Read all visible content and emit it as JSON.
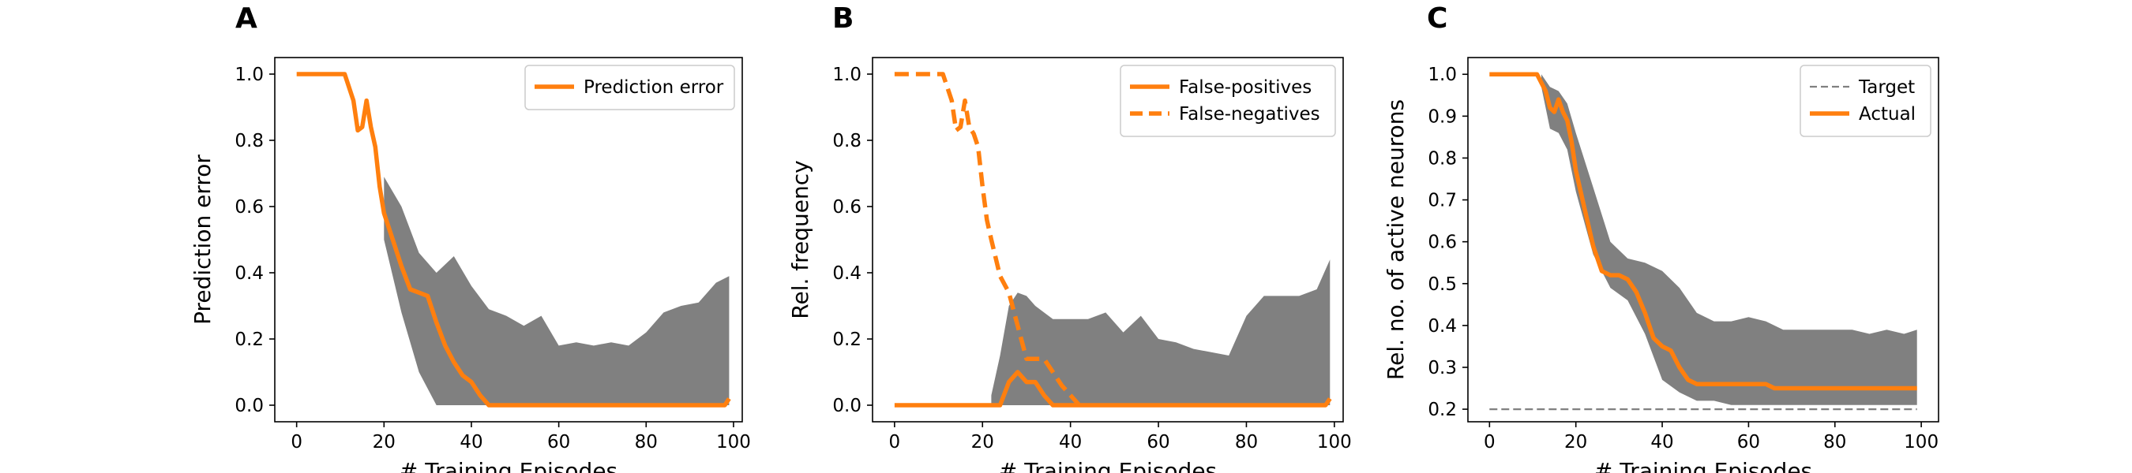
{
  "colors": {
    "line": "#ff7f0e",
    "band": "#808080",
    "target": "#808080",
    "axes": "#000000"
  },
  "chart_data": [
    {
      "type": "line",
      "panel_label": "A",
      "xlabel": "# Training Episodes",
      "ylabel": "Prediction error",
      "xlim": [
        -5,
        102
      ],
      "ylim": [
        -0.05,
        1.05
      ],
      "xticks": [
        0,
        20,
        40,
        60,
        80,
        100
      ],
      "yticks": [
        0.0,
        0.2,
        0.4,
        0.6,
        0.8,
        1.0
      ],
      "ytick_format": 1,
      "legend_position": "top-right",
      "band": {
        "x": [
          20,
          24,
          28,
          32,
          36,
          40,
          44,
          48,
          52,
          56,
          60,
          64,
          68,
          72,
          76,
          80,
          84,
          88,
          92,
          96,
          99
        ],
        "lower": [
          0.5,
          0.28,
          0.1,
          0.0,
          0.0,
          0.0,
          0.0,
          0.0,
          0.0,
          0.0,
          0.0,
          0.0,
          0.0,
          0.0,
          0.0,
          0.0,
          0.0,
          0.0,
          0.0,
          0.0,
          0.0
        ],
        "upper": [
          0.69,
          0.6,
          0.46,
          0.4,
          0.45,
          0.36,
          0.29,
          0.27,
          0.24,
          0.27,
          0.18,
          0.19,
          0.18,
          0.19,
          0.18,
          0.22,
          0.28,
          0.3,
          0.31,
          0.37,
          0.39
        ]
      },
      "series": [
        {
          "name": "Prediction error",
          "style": "solid",
          "x": [
            0,
            11,
            13,
            14,
            15,
            16,
            17,
            18,
            19,
            20,
            22,
            24,
            26,
            28,
            30,
            32,
            34,
            36,
            38,
            40,
            42,
            44,
            50,
            60,
            70,
            80,
            90,
            98,
            99
          ],
          "y": [
            1.0,
            1.0,
            0.92,
            0.83,
            0.84,
            0.92,
            0.84,
            0.78,
            0.66,
            0.58,
            0.5,
            0.42,
            0.35,
            0.34,
            0.33,
            0.25,
            0.18,
            0.13,
            0.09,
            0.07,
            0.03,
            0.0,
            0.0,
            0.0,
            0.0,
            0.0,
            0.0,
            0.0,
            0.02
          ]
        }
      ]
    },
    {
      "type": "line",
      "panel_label": "B",
      "xlabel": "# Training Episodes",
      "ylabel": "Rel. frequency",
      "xlim": [
        -5,
        102
      ],
      "ylim": [
        -0.05,
        1.05
      ],
      "xticks": [
        0,
        20,
        40,
        60,
        80,
        100
      ],
      "yticks": [
        0.0,
        0.2,
        0.4,
        0.6,
        0.8,
        1.0
      ],
      "ytick_format": 1,
      "legend_position": "top-right",
      "band": {
        "x": [
          22,
          24,
          26,
          28,
          30,
          32,
          34,
          36,
          40,
          44,
          48,
          52,
          56,
          60,
          64,
          68,
          72,
          76,
          80,
          84,
          88,
          92,
          96,
          99
        ],
        "lower": [
          0.0,
          0.0,
          0.0,
          0.0,
          0.0,
          0.0,
          0.0,
          0.0,
          0.0,
          0.0,
          0.0,
          0.0,
          0.0,
          0.0,
          0.0,
          0.0,
          0.0,
          0.0,
          0.0,
          0.0,
          0.0,
          0.0,
          0.0,
          0.0
        ],
        "upper": [
          0.03,
          0.15,
          0.3,
          0.34,
          0.33,
          0.3,
          0.28,
          0.26,
          0.26,
          0.26,
          0.28,
          0.22,
          0.27,
          0.2,
          0.19,
          0.17,
          0.16,
          0.15,
          0.27,
          0.33,
          0.33,
          0.33,
          0.35,
          0.44
        ]
      },
      "series": [
        {
          "name": "False-positives",
          "style": "solid",
          "x": [
            0,
            24,
            26,
            28,
            30,
            32,
            34,
            36,
            98,
            99
          ],
          "y": [
            0.0,
            0.0,
            0.07,
            0.1,
            0.07,
            0.07,
            0.03,
            0.0,
            0.0,
            0.02
          ]
        },
        {
          "name": "False-negatives",
          "style": "dashed",
          "x": [
            0,
            11,
            13,
            14,
            15,
            16,
            17,
            18,
            19,
            20,
            21,
            22,
            24,
            26,
            28,
            30,
            32,
            34,
            36,
            38,
            40,
            42
          ],
          "y": [
            1.0,
            1.0,
            0.92,
            0.83,
            0.84,
            0.92,
            0.84,
            0.82,
            0.78,
            0.66,
            0.56,
            0.5,
            0.39,
            0.34,
            0.24,
            0.14,
            0.14,
            0.14,
            0.1,
            0.06,
            0.03,
            0.0
          ]
        }
      ]
    },
    {
      "type": "line",
      "panel_label": "C",
      "xlabel": "# Training Episodes",
      "ylabel": "Rel. no. of active neurons",
      "xlim": [
        -5,
        104
      ],
      "ylim": [
        0.17,
        1.04
      ],
      "xticks": [
        0,
        20,
        40,
        60,
        80,
        100
      ],
      "yticks": [
        0.2,
        0.3,
        0.4,
        0.5,
        0.6,
        0.7,
        0.8,
        0.9,
        1.0
      ],
      "ytick_format": 1,
      "legend_position": "top-right",
      "band": {
        "x": [
          12,
          14,
          16,
          18,
          20,
          24,
          28,
          32,
          36,
          40,
          44,
          48,
          52,
          56,
          60,
          64,
          68,
          72,
          76,
          80,
          84,
          88,
          92,
          96,
          99
        ],
        "lower": [
          0.97,
          0.87,
          0.86,
          0.82,
          0.72,
          0.57,
          0.49,
          0.46,
          0.38,
          0.27,
          0.24,
          0.22,
          0.22,
          0.21,
          0.21,
          0.21,
          0.21,
          0.21,
          0.21,
          0.21,
          0.21,
          0.21,
          0.21,
          0.21,
          0.21
        ],
        "upper": [
          1.0,
          0.97,
          0.96,
          0.93,
          0.86,
          0.73,
          0.6,
          0.56,
          0.55,
          0.53,
          0.49,
          0.43,
          0.41,
          0.41,
          0.42,
          0.41,
          0.39,
          0.39,
          0.39,
          0.39,
          0.39,
          0.38,
          0.39,
          0.38,
          0.39
        ]
      },
      "series": [
        {
          "name": "Target",
          "style": "dashed-thin",
          "x": [
            0,
            99
          ],
          "y": [
            0.2,
            0.2
          ]
        },
        {
          "name": "Actual",
          "style": "solid",
          "x": [
            0,
            11,
            13,
            14,
            15,
            16,
            17,
            18,
            19,
            20,
            22,
            24,
            26,
            28,
            30,
            32,
            34,
            36,
            38,
            40,
            42,
            44,
            46,
            48,
            50,
            55,
            60,
            64,
            66,
            68,
            70,
            80,
            90,
            99
          ],
          "y": [
            1.0,
            1.0,
            0.96,
            0.92,
            0.91,
            0.94,
            0.91,
            0.89,
            0.84,
            0.77,
            0.68,
            0.59,
            0.53,
            0.52,
            0.52,
            0.51,
            0.48,
            0.43,
            0.37,
            0.35,
            0.34,
            0.3,
            0.27,
            0.26,
            0.26,
            0.26,
            0.26,
            0.26,
            0.25,
            0.25,
            0.25,
            0.25,
            0.25,
            0.25
          ]
        }
      ]
    }
  ]
}
